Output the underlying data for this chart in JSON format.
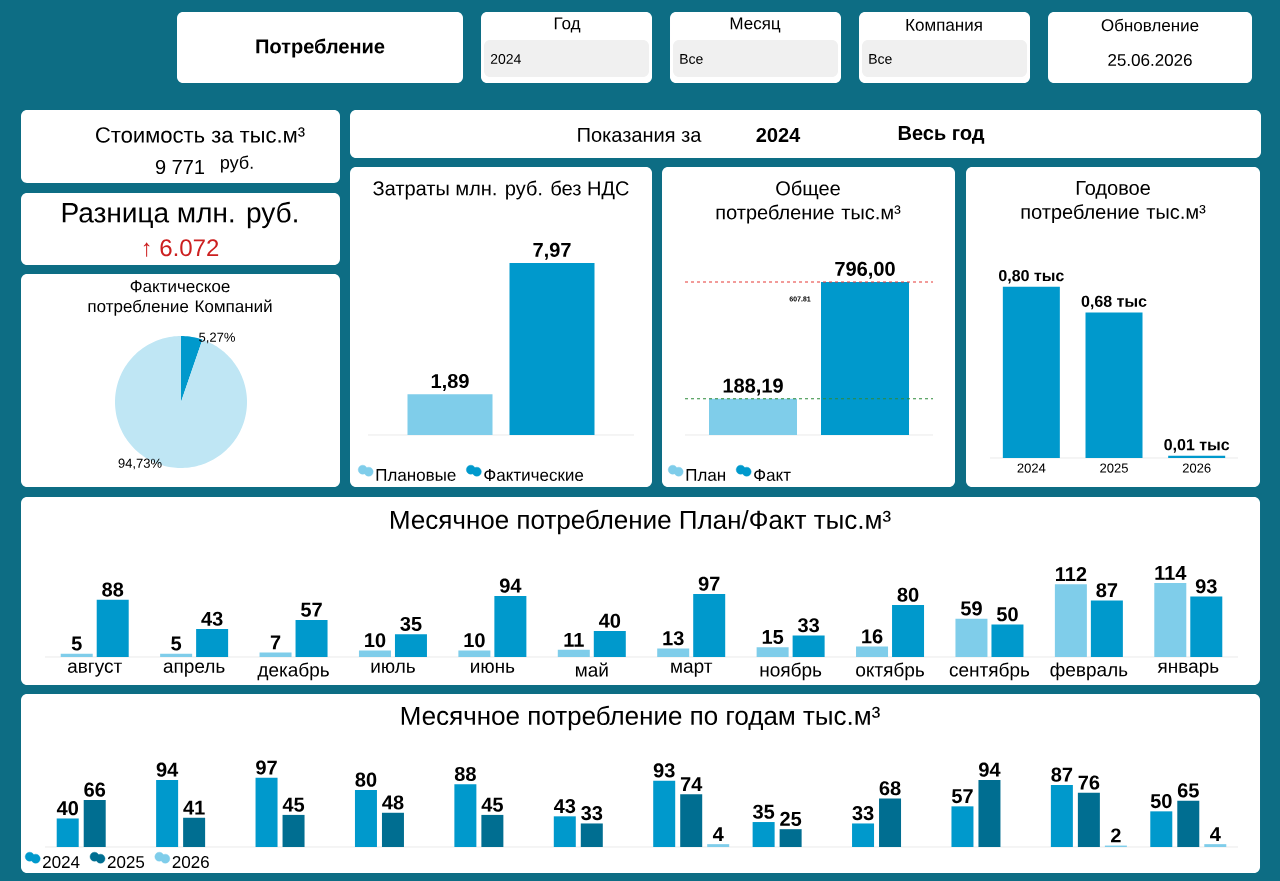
{
  "chart_data": [
    {
      "type": "other",
      "title": "Потребление",
      "annotations": [
        "Год",
        "2024",
        "Месяц",
        "Все",
        "Компания",
        "Все",
        "Обновление",
        "25.06.2026",
        "Стоимость за тыс.м³",
        "9 771",
        "руб.",
        "Разница млн. руб.",
        "↑ 6.072",
        "Показания за",
        "2024",
        "Весь год"
      ]
    },
    {
      "type": "pie",
      "title": "Фактическое потребление Компаний",
      "categories": [
        null,
        null
      ],
      "values": [
        5.27,
        94.73
      ],
      "colors": [
        "#0099cc",
        "#bfe6f4"
      ],
      "value_labels": [
        "5,27%",
        "94,73%"
      ]
    },
    {
      "type": "bar",
      "title": "Затраты млн. руб. без НДС",
      "categories": [
        null
      ],
      "legend": "bottom left",
      "series": [
        {
          "name": "Плановые",
          "color": "#7fcdea",
          "values": [
            1.89
          ],
          "value_labels": [
            "1,89"
          ]
        },
        {
          "name": "Фактические",
          "color": "#0099cc",
          "values": [
            7.97
          ],
          "value_labels": [
            "7,97"
          ]
        }
      ]
    },
    {
      "type": "bar",
      "title": "Общее потребление тыс.м³",
      "categories": [
        null
      ],
      "legend": "bottom left",
      "annotations": [
        "607.81"
      ],
      "series": [
        {
          "name": "План",
          "color": "#7fcdea",
          "values": [
            188.19
          ],
          "value_labels": [
            "188,19"
          ]
        },
        {
          "name": "Факт",
          "color": "#0099cc",
          "values": [
            796.0
          ],
          "value_labels": [
            "796,00"
          ]
        }
      ],
      "ref_lines": [
        {
          "axis": "y",
          "value": 796,
          "color": "#e53935",
          "line_style": "dashed"
        },
        {
          "axis": "y",
          "value": 188.19,
          "color": "#2e8b3a",
          "line_style": "dashed"
        }
      ]
    },
    {
      "type": "bar",
      "title": "Годовое потребление тыс.м³",
      "categories": [
        "2024",
        "2025",
        "2026"
      ],
      "values": [
        0.8,
        0.68,
        0.01
      ],
      "color": "#0099cc",
      "value_labels": [
        "0,80 тыс",
        "0,68 тыс",
        "0,01 тыс"
      ]
    },
    {
      "type": "bar",
      "title": "Месячное потребление План/Факт тыс.м³",
      "categories": [
        "август",
        "апрель",
        "декабрь",
        "июль",
        "июнь",
        "май",
        "март",
        "ноябрь",
        "октябрь",
        "сентябрь",
        "февраль",
        "январь"
      ],
      "data_labels": true,
      "series": [
        {
          "color": "#7fcdea",
          "values": [
            5,
            5,
            7,
            10,
            10,
            11,
            13,
            15,
            16,
            59,
            112,
            114
          ]
        },
        {
          "color": "#0099cc",
          "values": [
            88,
            43,
            57,
            35,
            94,
            40,
            97,
            33,
            80,
            50,
            87,
            93
          ]
        }
      ]
    },
    {
      "type": "bar",
      "title": "Месячное потребление по годам тыс.м³",
      "categories": [
        null,
        null,
        null,
        null,
        null,
        null,
        null,
        null,
        null,
        null,
        null,
        null
      ],
      "data_labels": true,
      "legend": "bottom left",
      "series": [
        {
          "name": "2024",
          "color": "#0099cc",
          "values": [
            40,
            94,
            97,
            80,
            88,
            43,
            93,
            35,
            33,
            57,
            87,
            50
          ]
        },
        {
          "name": "2025",
          "color": "#006e91",
          "values": [
            66,
            41,
            45,
            48,
            45,
            33,
            74,
            25,
            68,
            94,
            76,
            65
          ]
        },
        {
          "name": "2026",
          "color": "#7fcdea",
          "values": [
            null,
            null,
            null,
            null,
            null,
            null,
            4,
            null,
            null,
            null,
            2,
            4
          ]
        }
      ]
    }
  ]
}
